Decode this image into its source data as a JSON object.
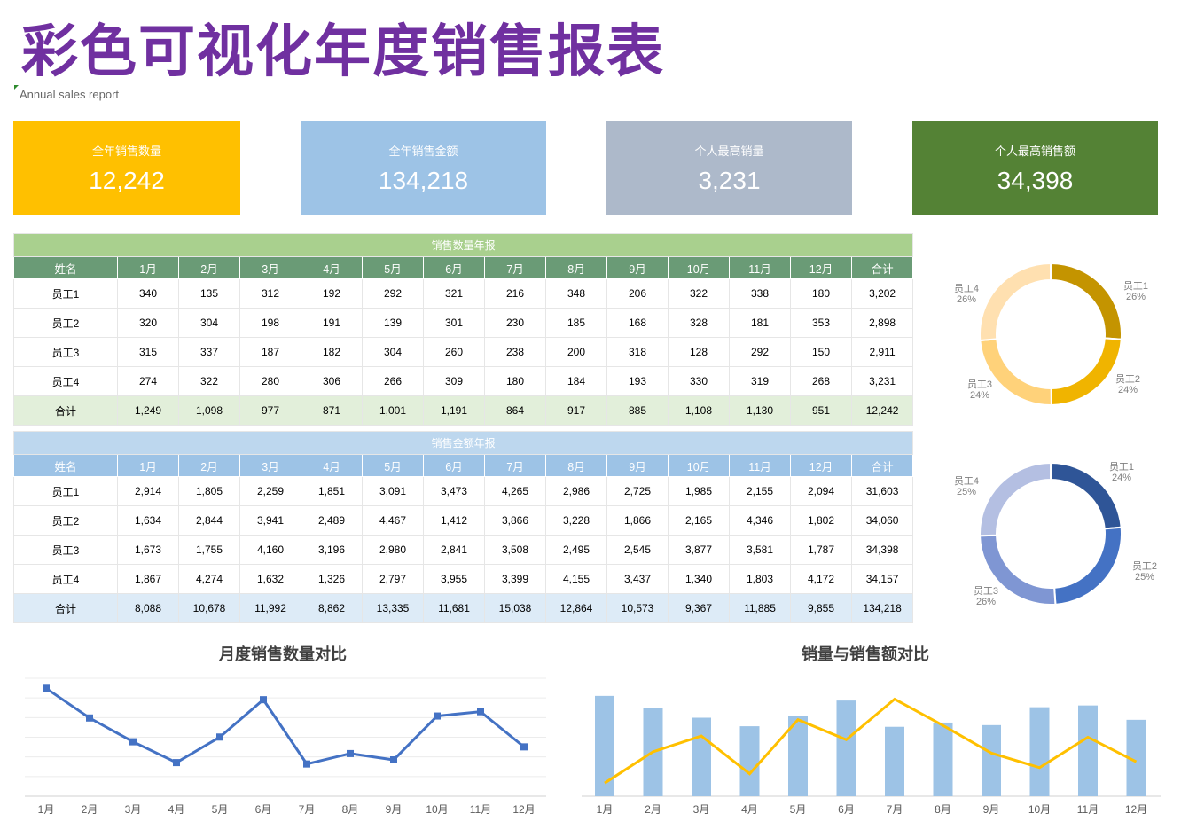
{
  "page": {
    "title": "彩色可视化年度销售报表",
    "subtitle": "Annual sales report"
  },
  "kpis": [
    {
      "label": "全年销售数量",
      "value": "12,242",
      "color": "#ffc000"
    },
    {
      "label": "全年销售金额",
      "value": "134,218",
      "color": "#9dc3e6"
    },
    {
      "label": "个人最高销量",
      "value": "3,231",
      "color": "#adb9ca"
    },
    {
      "label": "个人最高销售额",
      "value": "34,398",
      "color": "#548235"
    }
  ],
  "qty_table": {
    "caption": "销售数量年报",
    "headers": [
      "姓名",
      "1月",
      "2月",
      "3月",
      "4月",
      "5月",
      "6月",
      "7月",
      "8月",
      "9月",
      "10月",
      "11月",
      "12月",
      "合计"
    ],
    "rows": [
      [
        "员工1",
        "340",
        "135",
        "312",
        "192",
        "292",
        "321",
        "216",
        "348",
        "206",
        "322",
        "338",
        "180",
        "3,202"
      ],
      [
        "员工2",
        "320",
        "304",
        "198",
        "191",
        "139",
        "301",
        "230",
        "185",
        "168",
        "328",
        "181",
        "353",
        "2,898"
      ],
      [
        "员工3",
        "315",
        "337",
        "187",
        "182",
        "304",
        "260",
        "238",
        "200",
        "318",
        "128",
        "292",
        "150",
        "2,911"
      ],
      [
        "员工4",
        "274",
        "322",
        "280",
        "306",
        "266",
        "309",
        "180",
        "184",
        "193",
        "330",
        "319",
        "268",
        "3,231"
      ]
    ],
    "total": [
      "合计",
      "1,249",
      "1,098",
      "977",
      "871",
      "1,001",
      "1,191",
      "864",
      "917",
      "885",
      "1,108",
      "1,130",
      "951",
      "12,242"
    ]
  },
  "amt_table": {
    "caption": "销售金额年报",
    "headers": [
      "姓名",
      "1月",
      "2月",
      "3月",
      "4月",
      "5月",
      "6月",
      "7月",
      "8月",
      "9月",
      "10月",
      "11月",
      "12月",
      "合计"
    ],
    "rows": [
      [
        "员工1",
        "2,914",
        "1,805",
        "2,259",
        "1,851",
        "3,091",
        "3,473",
        "4,265",
        "2,986",
        "2,725",
        "1,985",
        "2,155",
        "2,094",
        "31,603"
      ],
      [
        "员工2",
        "1,634",
        "2,844",
        "3,941",
        "2,489",
        "4,467",
        "1,412",
        "3,866",
        "3,228",
        "1,866",
        "2,165",
        "4,346",
        "1,802",
        "34,060"
      ],
      [
        "员工3",
        "1,673",
        "1,755",
        "4,160",
        "3,196",
        "2,980",
        "2,841",
        "3,508",
        "2,495",
        "2,545",
        "3,877",
        "3,581",
        "1,787",
        "34,398"
      ],
      [
        "员工4",
        "1,867",
        "4,274",
        "1,632",
        "1,326",
        "2,797",
        "3,955",
        "3,399",
        "4,155",
        "3,437",
        "1,340",
        "1,803",
        "4,172",
        "34,157"
      ]
    ],
    "total": [
      "合计",
      "8,088",
      "10,678",
      "11,992",
      "8,862",
      "13,335",
      "11,681",
      "15,038",
      "12,864",
      "10,573",
      "9,367",
      "11,885",
      "9,855",
      "134,218"
    ]
  },
  "chart_data": [
    {
      "type": "pie",
      "variant": "donut",
      "labels": [
        "员工1",
        "员工2",
        "员工3",
        "员工4"
      ],
      "values": [
        3202,
        2898,
        2911,
        3231
      ],
      "percent_labels": [
        "26%",
        "24%",
        "24%",
        "26%"
      ],
      "colors": [
        "#c49400",
        "#f0b400",
        "#ffd27a",
        "#ffe0b0"
      ]
    },
    {
      "type": "pie",
      "variant": "donut",
      "labels": [
        "员工1",
        "员工2",
        "员工3",
        "员工4"
      ],
      "values": [
        31603,
        34060,
        34398,
        34157
      ],
      "percent_labels": [
        "24%",
        "25%",
        "26%",
        "25%"
      ],
      "colors": [
        "#2f5597",
        "#4472c4",
        "#7f96d3",
        "#b4bfe2"
      ]
    },
    {
      "type": "line",
      "title": "月度销售数量对比",
      "categories": [
        "1月",
        "2月",
        "3月",
        "4月",
        "5月",
        "6月",
        "7月",
        "8月",
        "9月",
        "10月",
        "11月",
        "12月"
      ],
      "series": [
        {
          "values": [
            1249,
            1098,
            977,
            871,
            1001,
            1191,
            864,
            917,
            885,
            1108,
            1130,
            951
          ],
          "color": "#4472c4"
        }
      ],
      "grid": true
    },
    {
      "type": "bar",
      "title": "销量与销售额对比",
      "categories": [
        "1月",
        "2月",
        "3月",
        "4月",
        "5月",
        "6月",
        "7月",
        "8月",
        "9月",
        "10月",
        "11月",
        "12月"
      ],
      "series": [
        {
          "values": [
            1249,
            1098,
            977,
            871,
            1001,
            1191,
            864,
            917,
            885,
            1108,
            1130,
            951
          ],
          "color": "#9dc3e6",
          "type": "bar"
        },
        {
          "values": [
            8088,
            10678,
            11992,
            8862,
            13335,
            11681,
            15038,
            12864,
            10573,
            9367,
            11885,
            9855
          ],
          "color": "#ffc000",
          "type": "line"
        }
      ],
      "grid": false
    }
  ]
}
